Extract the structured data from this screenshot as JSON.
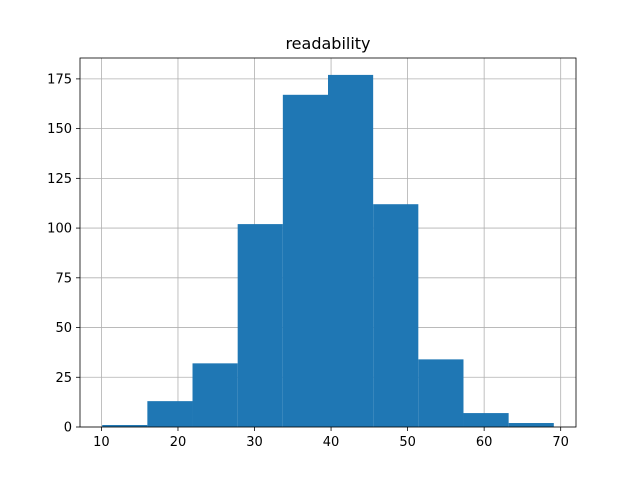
{
  "chart_data": {
    "type": "bar",
    "title": "readability",
    "xlabel": "",
    "ylabel": "",
    "bins": [
      {
        "x0": 10.1,
        "x1": 16.0,
        "count": 1
      },
      {
        "x0": 16.0,
        "x1": 21.9,
        "count": 13
      },
      {
        "x0": 21.9,
        "x1": 27.8,
        "count": 32
      },
      {
        "x0": 27.8,
        "x1": 33.7,
        "count": 102
      },
      {
        "x0": 33.7,
        "x1": 39.6,
        "count": 167
      },
      {
        "x0": 39.6,
        "x1": 45.5,
        "count": 177
      },
      {
        "x0": 45.5,
        "x1": 51.4,
        "count": 112
      },
      {
        "x0": 51.4,
        "x1": 57.3,
        "count": 34
      },
      {
        "x0": 57.3,
        "x1": 63.2,
        "count": 7
      },
      {
        "x0": 63.2,
        "x1": 69.1,
        "count": 2
      }
    ],
    "xlim": [
      7.2,
      72.0
    ],
    "ylim": [
      0,
      185.5
    ],
    "xticks": [
      10,
      20,
      30,
      40,
      50,
      60,
      70
    ],
    "yticks": [
      0,
      25,
      50,
      75,
      100,
      125,
      150,
      175
    ],
    "grid": true,
    "bar_color": "#1f77b4",
    "grid_color": "#b0b0b0"
  }
}
